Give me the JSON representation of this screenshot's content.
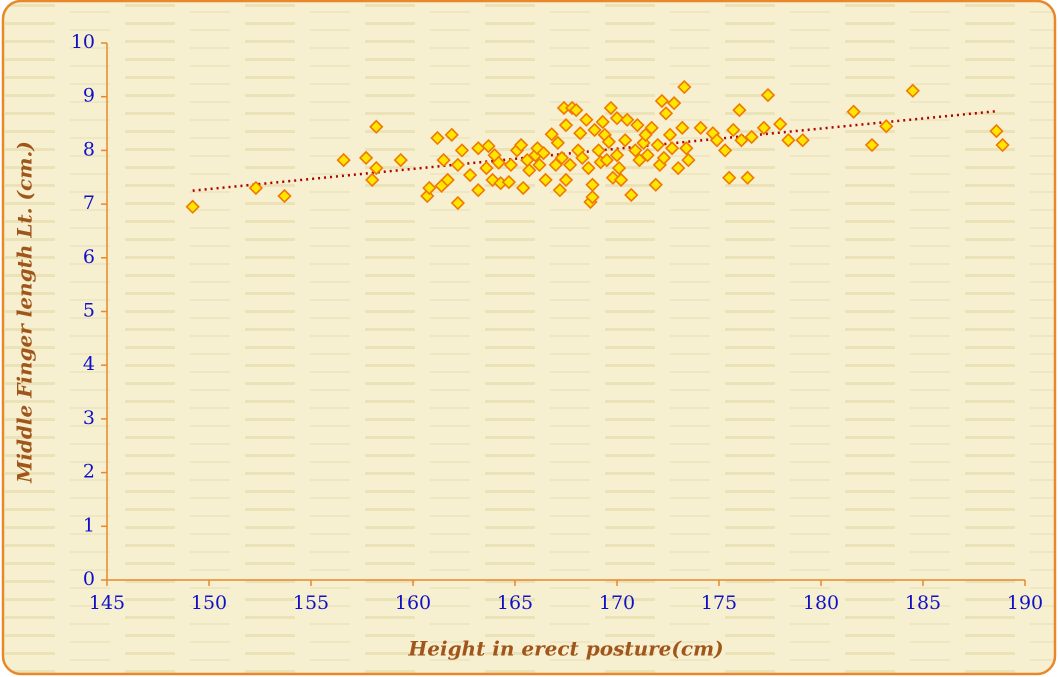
{
  "chart_data": {
    "type": "scatter",
    "x_label": "Height in erect posture(cm)",
    "y_label": "Middle Finger length Lt. (cm.)",
    "xlim": [
      145,
      190
    ],
    "xticks": [
      145,
      150,
      155,
      160,
      165,
      170,
      175,
      180,
      185,
      190
    ],
    "ylim": [
      0,
      10
    ],
    "yticks": [
      0,
      1,
      2,
      3,
      4,
      5,
      6,
      7,
      8,
      9,
      10
    ],
    "series": [
      {
        "color": "#ffe600",
        "edge_color": "#f07800",
        "x": [
          149.2,
          152.3,
          153.7,
          156.6,
          157.7,
          158.2,
          158.2,
          158.0,
          159.4,
          160.7,
          160.8,
          161.2,
          161.9,
          161.5,
          161.7,
          161.4,
          162.2,
          162.2,
          162.4,
          162.8,
          163.2,
          163.2,
          163.7,
          163.6,
          163.9,
          164.0,
          164.2,
          164.3,
          164.8,
          164.7,
          165.1,
          165.3,
          165.4,
          165.6,
          165.7,
          166.0,
          166.1,
          166.2,
          166.4,
          166.5,
          166.8,
          167.0,
          167.1,
          167.2,
          167.3,
          167.4,
          167.5,
          167.5,
          167.7,
          167.8,
          168.0,
          168.1,
          168.2,
          168.3,
          168.5,
          168.6,
          168.7,
          168.8,
          168.8,
          168.9,
          169.1,
          169.2,
          169.3,
          169.4,
          169.5,
          169.6,
          169.7,
          169.8,
          170.0,
          170.0,
          170.1,
          170.2,
          170.4,
          170.5,
          170.7,
          170.9,
          171.0,
          171.1,
          171.3,
          171.4,
          171.5,
          171.7,
          171.9,
          172.0,
          172.1,
          172.2,
          172.3,
          172.4,
          172.6,
          172.7,
          172.8,
          173.0,
          173.2,
          173.3,
          173.4,
          173.5,
          174.1,
          174.7,
          174.9,
          175.3,
          175.5,
          175.7,
          176.0,
          176.1,
          176.4,
          176.6,
          177.2,
          177.4,
          178.0,
          178.4,
          179.1,
          181.6,
          182.5,
          183.2,
          184.5,
          188.6,
          188.9
        ],
        "values": [
          6.95,
          7.3,
          7.15,
          7.82,
          7.86,
          8.44,
          7.67,
          7.45,
          7.82,
          7.15,
          7.3,
          8.23,
          8.29,
          7.82,
          7.45,
          7.34,
          7.73,
          7.02,
          8.0,
          7.54,
          8.04,
          7.26,
          8.08,
          7.67,
          7.45,
          7.91,
          7.77,
          7.39,
          7.73,
          7.41,
          8.0,
          8.1,
          7.3,
          7.82,
          7.63,
          7.91,
          8.04,
          7.73,
          7.95,
          7.45,
          8.3,
          7.73,
          8.14,
          7.26,
          7.86,
          8.79,
          7.45,
          8.47,
          7.73,
          8.79,
          8.75,
          8.0,
          8.32,
          7.86,
          8.57,
          7.67,
          7.04,
          7.36,
          7.13,
          8.38,
          8.0,
          7.78,
          8.53,
          8.29,
          7.82,
          8.16,
          8.79,
          7.49,
          7.91,
          8.6,
          7.67,
          7.45,
          8.19,
          8.57,
          7.17,
          8.0,
          8.47,
          7.82,
          8.14,
          8.29,
          7.91,
          8.42,
          7.36,
          8.1,
          7.73,
          8.92,
          7.86,
          8.69,
          8.29,
          8.04,
          8.88,
          7.67,
          8.42,
          9.18,
          8.04,
          7.82,
          8.42,
          8.32,
          8.19,
          8.0,
          7.49,
          8.38,
          8.75,
          8.19,
          7.49,
          8.25,
          8.42,
          9.03,
          8.49,
          8.19,
          8.19,
          8.72,
          8.1,
          8.45,
          9.11,
          8.36,
          8.1
        ]
      }
    ],
    "trendline": {
      "color": "#b00000",
      "x": [
        149.2,
        188.6
      ],
      "values": [
        7.25,
        8.73
      ]
    }
  }
}
